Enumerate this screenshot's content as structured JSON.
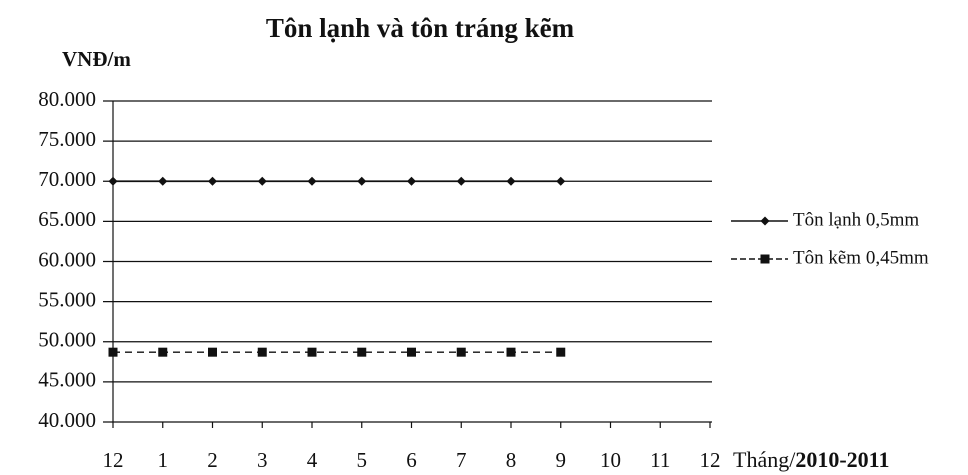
{
  "chart_data": {
    "type": "line",
    "title": "Tôn lạnh và tôn tráng kẽm",
    "ylabel": "VNĐ/m",
    "xlabel": {
      "text": "Tháng/",
      "bold": "2010-2011"
    },
    "categories": [
      "12",
      "1",
      "2",
      "3",
      "4",
      "5",
      "6",
      "7",
      "8",
      "9",
      "10",
      "11",
      "12"
    ],
    "series": [
      {
        "name": "Tôn lạnh 0,5mm",
        "color": "#111111",
        "dashed": false,
        "marker": "diamond",
        "values": [
          70000,
          70000,
          70000,
          70000,
          70000,
          70000,
          70000,
          70000,
          70000,
          70000,
          null,
          null,
          null
        ]
      },
      {
        "name": "Tôn kẽm 0,45mm",
        "color": "#111111",
        "dashed": true,
        "marker": "square",
        "values": [
          48700,
          48700,
          48700,
          48700,
          48700,
          48700,
          48700,
          48700,
          48700,
          48700,
          null,
          null,
          null
        ]
      }
    ],
    "ylim": [
      40000,
      80000
    ],
    "yticks": [
      {
        "value": 40000,
        "label": "40.000"
      },
      {
        "value": 45000,
        "label": "45.000"
      },
      {
        "value": 50000,
        "label": "50.000"
      },
      {
        "value": 55000,
        "label": "55.000"
      },
      {
        "value": 60000,
        "label": "60.000"
      },
      {
        "value": 65000,
        "label": "65.000"
      },
      {
        "value": 70000,
        "label": "70.000"
      },
      {
        "value": 75000,
        "label": "75.000"
      },
      {
        "value": 80000,
        "label": "80.000"
      }
    ],
    "grid": true,
    "legend": "right"
  }
}
